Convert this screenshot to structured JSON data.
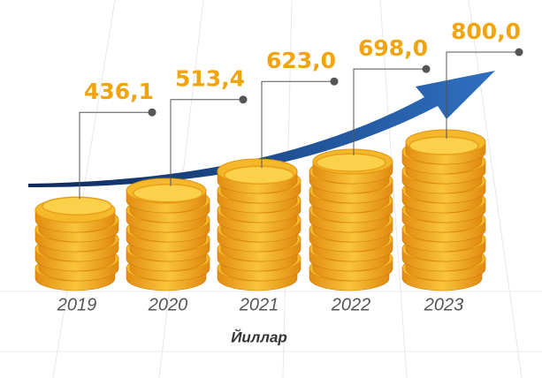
{
  "chart_data": {
    "type": "coin-stack",
    "x_label": "Йиллар",
    "categories": [
      "2019",
      "2020",
      "2021",
      "2022",
      "2023"
    ],
    "values": [
      436.1,
      513.4,
      623.0,
      698.0,
      800.0
    ],
    "value_labels": [
      "436,1",
      "513,4",
      "623,0",
      "698,0",
      "800,0"
    ]
  }
}
